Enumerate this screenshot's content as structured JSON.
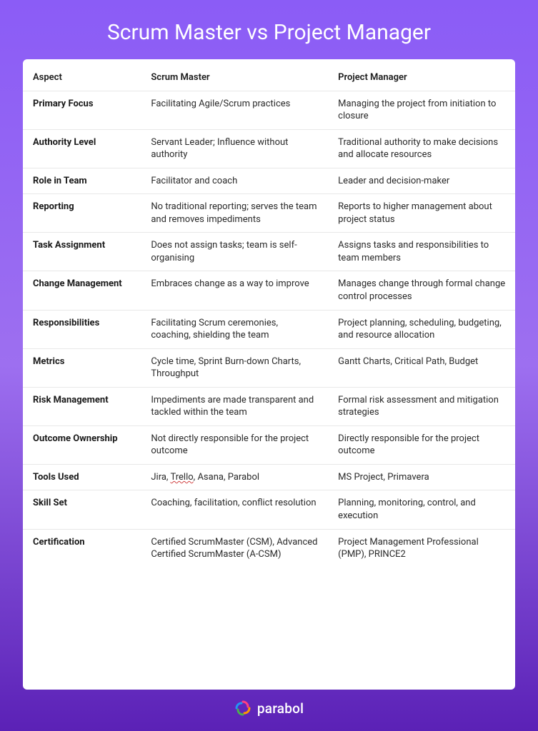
{
  "title": "Scrum Master vs Project Manager",
  "columns": [
    "Aspect",
    "Scrum Master",
    "Project Manager"
  ],
  "rows": [
    {
      "aspect": "Primary Focus",
      "sm": "Facilitating Agile/Scrum practices",
      "pm": "Managing the project from initiation to closure"
    },
    {
      "aspect": "Authority Level",
      "sm": "Servant Leader; Influence without authority",
      "pm": "Traditional authority to make decisions and allocate resources"
    },
    {
      "aspect": "Role in Team",
      "sm": "Facilitator and coach",
      "pm": "Leader and decision-maker"
    },
    {
      "aspect": "Reporting",
      "sm": "No traditional reporting; serves the team and removes impediments",
      "pm": "Reports to higher management about project status"
    },
    {
      "aspect": "Task Assignment",
      "sm": "Does not assign tasks; team is self-organising",
      "pm": "Assigns tasks and responsibilities to team members"
    },
    {
      "aspect": "Change Management",
      "sm": "Embraces change as a way to improve",
      "pm": "Manages change through formal change control processes"
    },
    {
      "aspect": "Responsibilities",
      "sm": "Facilitating Scrum ceremonies, coaching, shielding the team",
      "pm": "Project planning, scheduling, budgeting, and resource allocation"
    },
    {
      "aspect": "Metrics",
      "sm": "Cycle time, Sprint Burn-down Charts, Throughput",
      "pm": "Gantt Charts, Critical Path, Budget"
    },
    {
      "aspect": "Risk Management",
      "sm": "Impediments are made transparent and tackled within the team",
      "pm": "Formal risk assessment and mitigation strategies"
    },
    {
      "aspect": "Outcome Ownership",
      "sm": "Not directly responsible for the project outcome",
      "pm": "Directly responsible for the project outcome"
    },
    {
      "aspect": "Tools Used",
      "sm": "Jira, Trello, Asana, Parabol",
      "pm": "MS Project, Primavera"
    },
    {
      "aspect": "Skill Set",
      "sm": "Coaching, facilitation, conflict resolution",
      "pm": "Planning, monitoring, control, and execution"
    },
    {
      "aspect": "Certification",
      "sm": "Certified ScrumMaster (CSM), Advanced Certified ScrumMaster (A-CSM)",
      "pm": "Project Management Professional (PMP), PRINCE2"
    }
  ],
  "brand": "parabol",
  "styling": {
    "type": "table",
    "title_fontsize": 30,
    "body_fontsize": 13,
    "header_fontweight": 600,
    "aspect_fontweight": 700,
    "title_color": "#ffffff",
    "text_color": "#2a2a2a",
    "background_gradient": [
      "#8b5cf6",
      "#9d6ff0",
      "#5b21b6"
    ],
    "card_background": "#ffffff",
    "border_color": "#e8e8e8",
    "column_widths": [
      "24%",
      "38%",
      "38%"
    ],
    "logo_colors": [
      "#ff4081",
      "#ff9800",
      "#4caf50",
      "#2196f3"
    ]
  },
  "squiggle_word": "Trello"
}
